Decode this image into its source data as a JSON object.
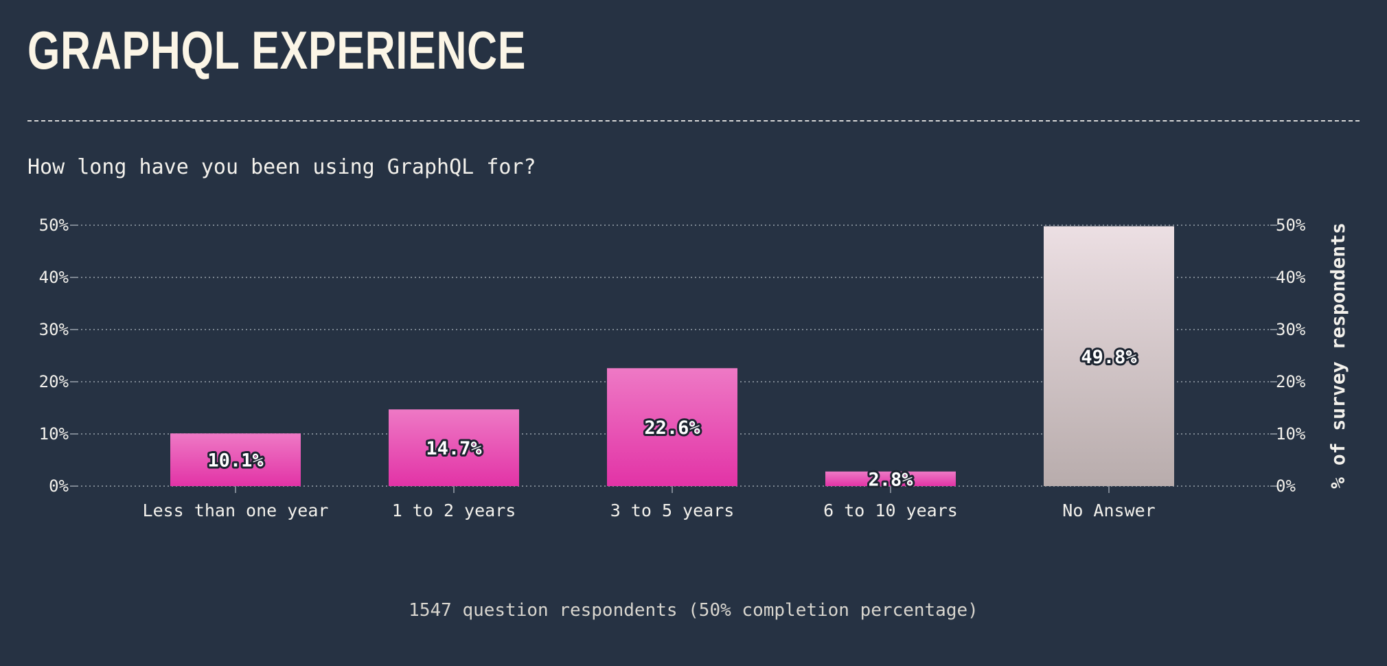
{
  "page": {
    "title": "GRAPHQL EXPERIENCE",
    "question": "How long have you been using GraphQL for?",
    "footer": "1547 question respondents (50% completion percentage)"
  },
  "colors": {
    "background": "#263243",
    "bar_top": "#ee79c5",
    "bar_bottom": "#e233a6",
    "no_answer_top": "#ecdfe3",
    "no_answer_bottom": "#b8acac",
    "grid": "#9aa3ad",
    "text": "#f3f1ec"
  },
  "chart_data": {
    "type": "bar",
    "categories": [
      "Less than one year",
      "1 to 2 years",
      "3 to 5 years",
      "6 to 10 years",
      "No Answer"
    ],
    "values": [
      10.1,
      14.7,
      22.6,
      2.8,
      49.8
    ],
    "value_labels": [
      "10.1%",
      "14.7%",
      "22.6%",
      "2.8%",
      "49.8%"
    ],
    "ylim": [
      0,
      50
    ],
    "yticks": [
      "0%",
      "10%",
      "20%",
      "30%",
      "40%",
      "50%"
    ],
    "ylabel_right": "% of survey respondents",
    "grid": true,
    "highlight_last_category": true
  }
}
